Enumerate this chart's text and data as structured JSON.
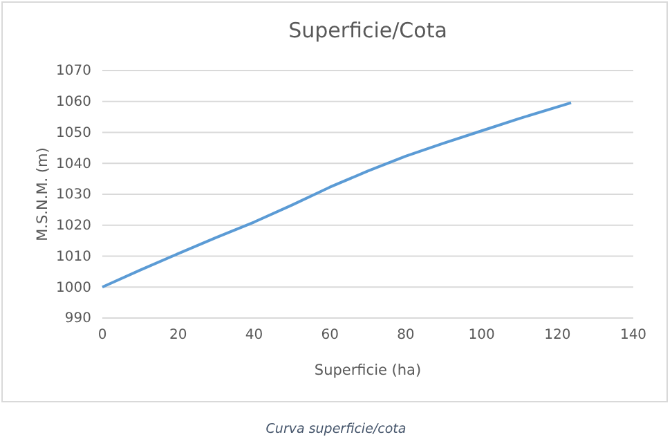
{
  "chart_data": {
    "type": "line",
    "title": "Superficie/Cota",
    "xlabel": "Superficie (ha)",
    "ylabel": "M.S.N.M. (m)",
    "x": [
      0,
      10,
      20,
      30,
      40,
      50,
      60,
      70,
      80,
      90,
      100,
      110,
      123.6
    ],
    "series": [
      {
        "color": "#5b9bd5",
        "values": [
          1000,
          1005.5,
          1010.8,
          1016,
          1021,
          1026.5,
          1032.3,
          1037.5,
          1042.3,
          1046.5,
          1050.5,
          1054.5,
          1059.6
        ]
      }
    ],
    "xlim": [
      0,
      140
    ],
    "xticks": [
      0,
      20,
      40,
      60,
      80,
      100,
      120,
      140
    ],
    "ylim": [
      990,
      1070
    ],
    "yticks": [
      990,
      1000,
      1010,
      1020,
      1030,
      1040,
      1050,
      1060,
      1070
    ],
    "grid": "y",
    "marker": "none",
    "line_style": "solid",
    "annotations": [
      "Curva superficie/cota"
    ]
  }
}
